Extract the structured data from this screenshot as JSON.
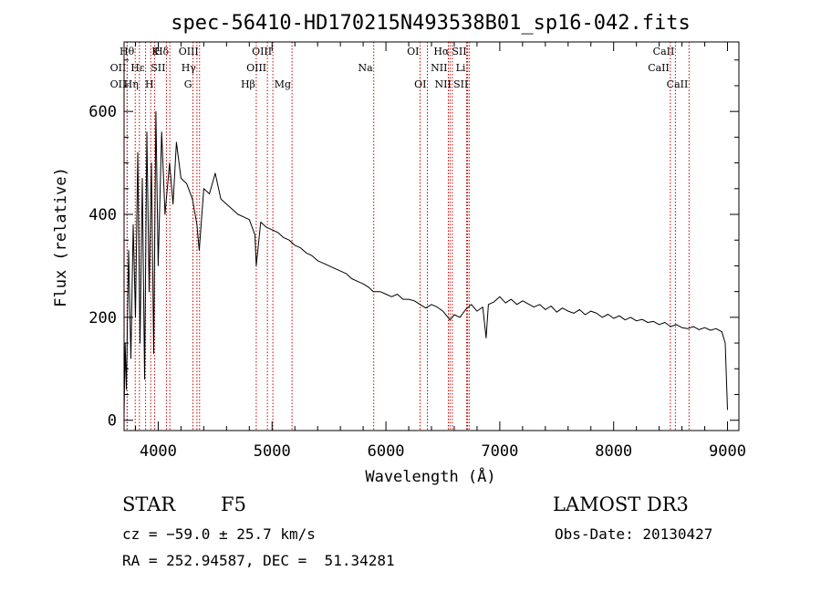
{
  "chart_data": {
    "type": "line",
    "title": "spec-56410-HD170215N493538B01_sp16-042.fits",
    "xlabel": "Wavelength (Å)",
    "ylabel": "Flux (relative)",
    "xlim": [
      3700,
      9100
    ],
    "ylim": [
      -20,
      735
    ],
    "xticks": [
      4000,
      5000,
      6000,
      7000,
      8000,
      9000
    ],
    "yticks": [
      0,
      200,
      400,
      600
    ],
    "series": [
      {
        "name": "flux",
        "x": [
          3700,
          3710,
          3720,
          3740,
          3760,
          3780,
          3800,
          3820,
          3840,
          3860,
          3880,
          3900,
          3920,
          3940,
          3960,
          3980,
          4000,
          4030,
          4060,
          4100,
          4130,
          4160,
          4200,
          4250,
          4300,
          4340,
          4360,
          4400,
          4450,
          4500,
          4550,
          4600,
          4650,
          4700,
          4750,
          4800,
          4850,
          4861,
          4900,
          4950,
          5000,
          5050,
          5100,
          5150,
          5200,
          5250,
          5300,
          5350,
          5400,
          5450,
          5500,
          5550,
          5600,
          5650,
          5700,
          5750,
          5800,
          5850,
          5890,
          5950,
          6000,
          6050,
          6100,
          6150,
          6200,
          6250,
          6300,
          6350,
          6400,
          6450,
          6500,
          6563,
          6600,
          6650,
          6700,
          6750,
          6800,
          6850,
          6880,
          6900,
          6950,
          7000,
          7050,
          7100,
          7150,
          7200,
          7250,
          7300,
          7350,
          7400,
          7450,
          7500,
          7550,
          7600,
          7650,
          7700,
          7750,
          7800,
          7850,
          7900,
          7950,
          8000,
          8050,
          8100,
          8150,
          8200,
          8250,
          8300,
          8350,
          8400,
          8450,
          8500,
          8550,
          8600,
          8650,
          8700,
          8750,
          8800,
          8850,
          8900,
          8950,
          8980,
          9000
        ],
        "values": [
          10,
          150,
          60,
          330,
          120,
          380,
          200,
          520,
          150,
          470,
          80,
          560,
          250,
          500,
          130,
          600,
          300,
          560,
          400,
          500,
          420,
          540,
          470,
          460,
          430,
          380,
          330,
          450,
          440,
          480,
          430,
          420,
          410,
          400,
          395,
          390,
          360,
          300,
          385,
          375,
          370,
          365,
          355,
          350,
          340,
          335,
          325,
          320,
          310,
          305,
          300,
          295,
          290,
          285,
          275,
          270,
          265,
          258,
          250,
          250,
          245,
          240,
          245,
          235,
          235,
          232,
          225,
          218,
          225,
          220,
          212,
          195,
          205,
          200,
          215,
          225,
          212,
          220,
          160,
          225,
          230,
          240,
          228,
          235,
          225,
          232,
          226,
          220,
          225,
          215,
          222,
          210,
          218,
          212,
          208,
          215,
          205,
          212,
          208,
          200,
          206,
          198,
          203,
          195,
          200,
          193,
          196,
          190,
          192,
          186,
          190,
          182,
          186,
          180,
          178,
          182,
          176,
          180,
          175,
          178,
          172,
          150,
          20
        ]
      }
    ],
    "lines": [
      {
        "name": "OII",
        "wave": 3727,
        "row": 3,
        "side": "left"
      },
      {
        "name": "OII",
        "wave": 3727,
        "row": 2,
        "side": "left"
      },
      {
        "name": "Hθ",
        "wave": 3798,
        "row": 1,
        "side": "left"
      },
      {
        "name": "Hη",
        "wave": 3835,
        "row": 3,
        "side": "left"
      },
      {
        "name": "Hε",
        "wave": 3889,
        "row": 2,
        "side": "left"
      },
      {
        "name": "K",
        "wave": 3934,
        "row": 1,
        "side": "right"
      },
      {
        "name": "H",
        "wave": 3969,
        "row": 3,
        "side": "left"
      },
      {
        "name": "SII",
        "wave": 4072,
        "row": 2,
        "side": "left"
      },
      {
        "name": "Hδ",
        "wave": 4102,
        "row": 1,
        "side": "left"
      },
      {
        "name": "G",
        "wave": 4305,
        "row": 3,
        "side": "left"
      },
      {
        "name": "Hγ",
        "wave": 4340,
        "row": 2,
        "side": "left"
      },
      {
        "name": "OIII",
        "wave": 4363,
        "row": 1,
        "side": "left"
      },
      {
        "name": "Hβ",
        "wave": 4861,
        "row": 3,
        "side": "left"
      },
      {
        "name": "OIII",
        "wave": 4959,
        "row": 2,
        "side": "left"
      },
      {
        "name": "OIII",
        "wave": 5007,
        "row": 1,
        "side": "left"
      },
      {
        "name": "Mg",
        "wave": 5175,
        "row": 3,
        "side": "left"
      },
      {
        "name": "Na",
        "wave": 5893,
        "row": 2,
        "side": "left"
      },
      {
        "name": "OI",
        "wave": 6300,
        "row": 1,
        "side": "left"
      },
      {
        "name": "OI",
        "wave": 6364,
        "row": 3,
        "side": "left"
      },
      {
        "name": "NII",
        "wave": 6548,
        "row": 2,
        "side": "left"
      },
      {
        "name": "Hα",
        "wave": 6563,
        "row": 1,
        "side": "left"
      },
      {
        "name": "NII",
        "wave": 6583,
        "row": 3,
        "side": "left"
      },
      {
        "name": "Li",
        "wave": 6708,
        "row": 2,
        "side": "left"
      },
      {
        "name": "SII",
        "wave": 6717,
        "row": 1,
        "side": "left"
      },
      {
        "name": "SII",
        "wave": 6731,
        "row": 3,
        "side": "left"
      },
      {
        "name": "CaII",
        "wave": 8498,
        "row": 2,
        "side": "left"
      },
      {
        "name": "CaII",
        "wave": 8542,
        "row": 1,
        "side": "left"
      },
      {
        "name": "CaII",
        "wave": 8662,
        "row": 3,
        "side": "left"
      }
    ]
  },
  "info": {
    "object_class": "STAR",
    "subclass": "F5",
    "survey": "LAMOST DR3",
    "cz": "cz = −59.0 ± 25.7 km/s",
    "obs_date": "Obs-Date: 20130427",
    "coords": "RA = 252.94587, DEC =  51.34281"
  },
  "colors": {
    "spectrum": "#000000",
    "line_markers": "#cc0000",
    "axes": "#000000"
  }
}
